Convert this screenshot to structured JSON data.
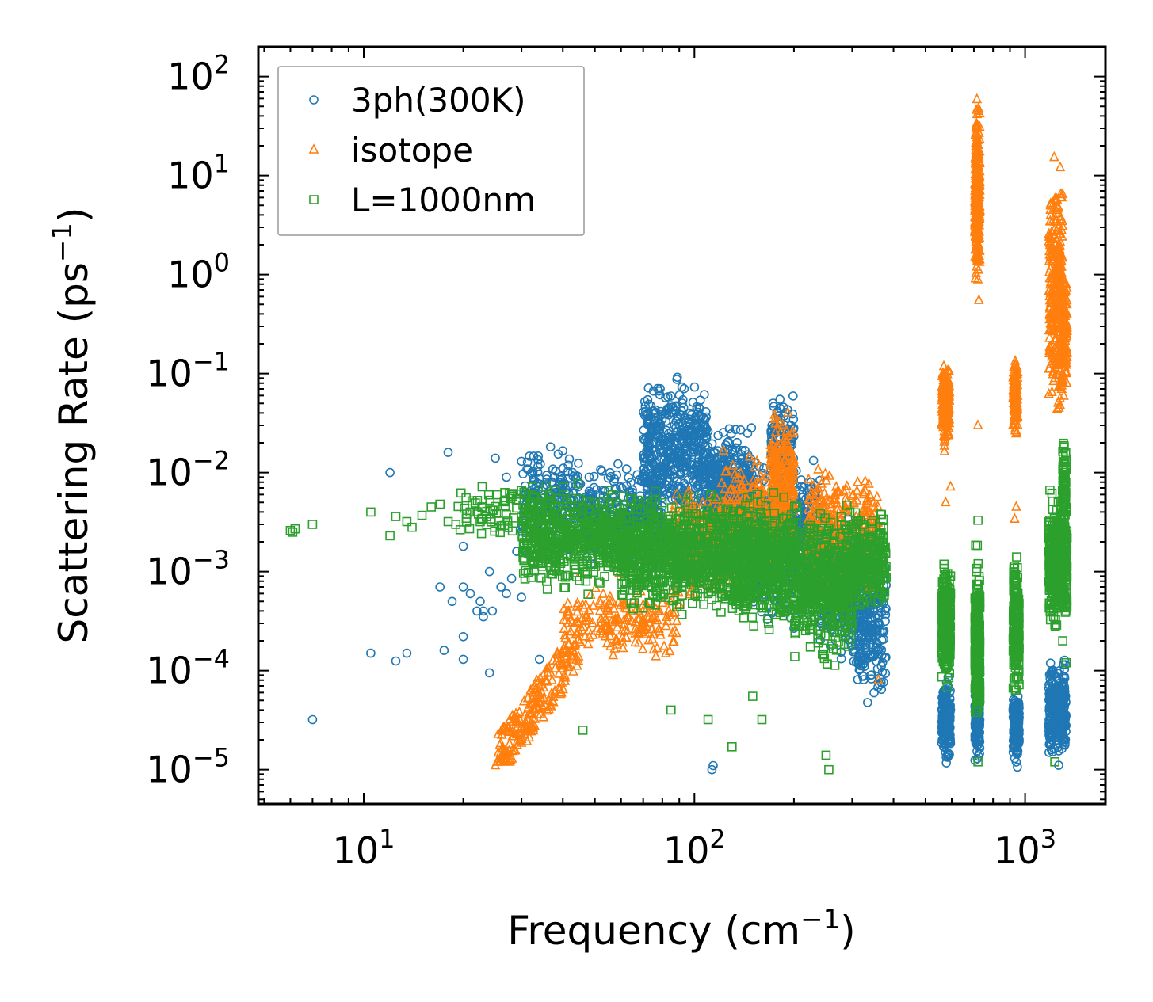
{
  "chart_data": {
    "type": "scatter",
    "xscale": "log",
    "yscale": "log",
    "xlim": [
      4.8,
      1750
    ],
    "ylim": [
      4.5e-06,
      200
    ],
    "xlabel": {
      "prefix": "Frequency (cm",
      "sup": "−1",
      "suffix": ")"
    },
    "ylabel": {
      "prefix": "Scattering Rate (ps",
      "sup": "−1",
      "suffix": ")"
    },
    "xticks": [
      {
        "value": 10,
        "base": "10",
        "exp": "1"
      },
      {
        "value": 100,
        "base": "10",
        "exp": "2"
      },
      {
        "value": 1000,
        "base": "10",
        "exp": "3"
      }
    ],
    "yticks": [
      {
        "value": 1e-05,
        "base": "10",
        "exp": "−5"
      },
      {
        "value": 0.0001,
        "base": "10",
        "exp": "−4"
      },
      {
        "value": 0.001,
        "base": "10",
        "exp": "−3"
      },
      {
        "value": 0.01,
        "base": "10",
        "exp": "−2"
      },
      {
        "value": 0.1,
        "base": "10",
        "exp": "−1"
      },
      {
        "value": 1,
        "base": "10",
        "exp": "0"
      },
      {
        "value": 10,
        "base": "10",
        "exp": "1"
      },
      {
        "value": 100,
        "base": "10",
        "exp": "2"
      }
    ],
    "legend_position": "top-left",
    "series": [
      {
        "name": "3ph(300K)",
        "color": "#1f77b4",
        "marker": "circle",
        "clusters": [
          {
            "x": [
              30,
              45
            ],
            "y": [
              0.001,
              0.025
            ],
            "n": 220
          },
          {
            "x": [
              45,
              80
            ],
            "y": [
              0.0008,
              0.015
            ],
            "n": 350
          },
          {
            "x": [
              70,
              110
            ],
            "y": [
              0.002,
              0.12
            ],
            "n": 500
          },
          {
            "x": [
              110,
              150
            ],
            "y": [
              0.001,
              0.04
            ],
            "n": 450
          },
          {
            "x": [
              150,
              240
            ],
            "y": [
              0.0002,
              0.02
            ],
            "n": 500
          },
          {
            "x": [
              170,
              200
            ],
            "y": [
              0.005,
              0.08
            ],
            "n": 120
          },
          {
            "x": [
              240,
              300
            ],
            "y": [
              0.0001,
              0.005
            ],
            "n": 250
          },
          {
            "x": [
              300,
              380
            ],
            "y": [
              3e-05,
              0.004
            ],
            "n": 300
          },
          {
            "x": [
              560,
              595
            ],
            "y": [
              1e-05,
              0.0001
            ],
            "n": 200
          },
          {
            "x": [
              705,
              730
            ],
            "y": [
              1e-05,
              0.00015
            ],
            "n": 180
          },
          {
            "x": [
              920,
              960
            ],
            "y": [
              1e-05,
              7e-05
            ],
            "n": 160
          },
          {
            "x": [
              1180,
              1330
            ],
            "y": [
              1e-05,
              0.00015
            ],
            "n": 320
          }
        ],
        "points": [
          [
            7,
            3.2e-05
          ],
          [
            10.5,
            0.00015
          ],
          [
            12.5,
            0.000125
          ],
          [
            13.5,
            0.00015
          ],
          [
            12,
            0.01
          ],
          [
            17.5,
            0.00016
          ],
          [
            20,
            0.00013
          ],
          [
            24,
            9.5e-05
          ],
          [
            17,
            0.0007
          ],
          [
            18.5,
            0.0005
          ],
          [
            20,
            0.0007
          ],
          [
            21,
            0.0006
          ],
          [
            22,
            0.0004
          ],
          [
            22.5,
            0.0005
          ],
          [
            23,
            0.0004
          ],
          [
            24.5,
            0.0004
          ],
          [
            26,
            0.0007
          ],
          [
            28,
            0.00085
          ],
          [
            18,
            0.016
          ],
          [
            20,
            0.0018
          ],
          [
            24,
            0.001
          ],
          [
            27,
            0.0006
          ],
          [
            29,
            0.0016
          ],
          [
            20,
            0.00022
          ],
          [
            23,
            0.00035
          ],
          [
            27,
            0.009
          ],
          [
            30,
            0.013
          ],
          [
            25,
            0.014
          ],
          [
            113,
            1e-05
          ],
          [
            114,
            1.1e-05
          ],
          [
            30,
            0.00055
          ],
          [
            34,
            0.00013
          ]
        ]
      },
      {
        "name": "isotope",
        "color": "#ff7f0e",
        "marker": "triangle",
        "clusters": [
          {
            "x": [
              25,
              45
            ],
            "y": [
              1.2e-05,
              0.0003
            ],
            "n": 220,
            "trend": true
          },
          {
            "x": [
              40,
              90
            ],
            "y": [
              0.0001,
              0.001
            ],
            "n": 200
          },
          {
            "x": [
              85,
              120
            ],
            "y": [
              0.0004,
              0.01
            ],
            "n": 250
          },
          {
            "x": [
              120,
              170
            ],
            "y": [
              0.0005,
              0.02
            ],
            "n": 300
          },
          {
            "x": [
              170,
              200
            ],
            "y": [
              0.001,
              0.05
            ],
            "n": 250
          },
          {
            "x": [
              220,
              290
            ],
            "y": [
              0.0005,
              0.015
            ],
            "n": 200
          },
          {
            "x": [
              300,
              360
            ],
            "y": [
              0.0005,
              0.012
            ],
            "n": 120
          },
          {
            "x": [
              560,
              590
            ],
            "y": [
              0.015,
              0.18
            ],
            "n": 200
          },
          {
            "x": [
              705,
              730
            ],
            "y": [
              0.5,
              80
            ],
            "n": 300
          },
          {
            "x": [
              920,
              950
            ],
            "y": [
              0.02,
              0.18
            ],
            "n": 150
          },
          {
            "x": [
              1180,
              1300
            ],
            "y": [
              0.02,
              22
            ],
            "n": 300
          },
          {
            "x": [
              1290,
              1340
            ],
            "y": [
              0.04,
              1.6
            ],
            "n": 120
          }
        ],
        "points": [
          [
            575,
            0.005
          ],
          [
            595,
            0.0072
          ],
          [
            720,
            0.03
          ],
          [
            725,
            0.55
          ],
          [
            930,
            0.0034
          ],
          [
            940,
            0.0045
          ],
          [
            1230,
            0.09
          ],
          [
            1270,
            0.005
          ],
          [
            360,
            8e-05
          ],
          [
            25,
            1.1e-05
          ],
          [
            26,
            1.3e-05
          ]
        ]
      },
      {
        "name": "L=1000nm",
        "color": "#2ca02c",
        "marker": "square",
        "clusters": [
          {
            "x": [
              19,
              30
            ],
            "y": [
              0.002,
              0.009
            ],
            "n": 60
          },
          {
            "x": [
              30,
              60
            ],
            "y": [
              0.0005,
              0.01
            ],
            "n": 500
          },
          {
            "x": [
              60,
              120
            ],
            "y": [
              0.0003,
              0.008
            ],
            "n": 700
          },
          {
            "x": [
              120,
              200
            ],
            "y": [
              0.0002,
              0.008
            ],
            "n": 700
          },
          {
            "x": [
              200,
              300
            ],
            "y": [
              0.0001,
              0.006
            ],
            "n": 500
          },
          {
            "x": [
              300,
              380
            ],
            "y": [
              0.0003,
              0.005
            ],
            "n": 250
          },
          {
            "x": [
              560,
              595
            ],
            "y": [
              5e-05,
              0.002
            ],
            "n": 250
          },
          {
            "x": [
              705,
              730
            ],
            "y": [
              2e-05,
              0.002
            ],
            "n": 250
          },
          {
            "x": [
              920,
              960
            ],
            "y": [
              4e-05,
              0.002
            ],
            "n": 200
          },
          {
            "x": [
              1180,
              1340
            ],
            "y": [
              0.0002,
              0.008
            ],
            "n": 400
          },
          {
            "x": [
              1300,
              1330
            ],
            "y": [
              0.002,
              0.025
            ],
            "n": 60
          }
        ],
        "points": [
          [
            6,
            0.0026
          ],
          [
            6.1,
            0.0025
          ],
          [
            6.2,
            0.0027
          ],
          [
            7,
            0.003
          ],
          [
            10.5,
            0.004
          ],
          [
            12,
            0.0023
          ],
          [
            12.5,
            0.0036
          ],
          [
            13.5,
            0.0032
          ],
          [
            14,
            0.0028
          ],
          [
            15,
            0.0037
          ],
          [
            16,
            0.0045
          ],
          [
            17,
            0.0048
          ],
          [
            18,
            0.0032
          ],
          [
            19,
            0.003
          ],
          [
            46,
            2.5e-05
          ],
          [
            85,
            4e-05
          ],
          [
            110,
            3.2e-05
          ],
          [
            130,
            1.7e-05
          ],
          [
            150,
            5.5e-05
          ],
          [
            160,
            3.2e-05
          ],
          [
            250,
            1.4e-05
          ],
          [
            255,
            1e-05
          ],
          [
            720,
            1.2e-05
          ],
          [
            1230,
            1.2e-05
          ],
          [
            720,
            0.0033
          ],
          [
            1300,
            0.0002
          ],
          [
            1330,
            0.00012
          ],
          [
            1330,
            0.0006
          ]
        ]
      }
    ]
  }
}
